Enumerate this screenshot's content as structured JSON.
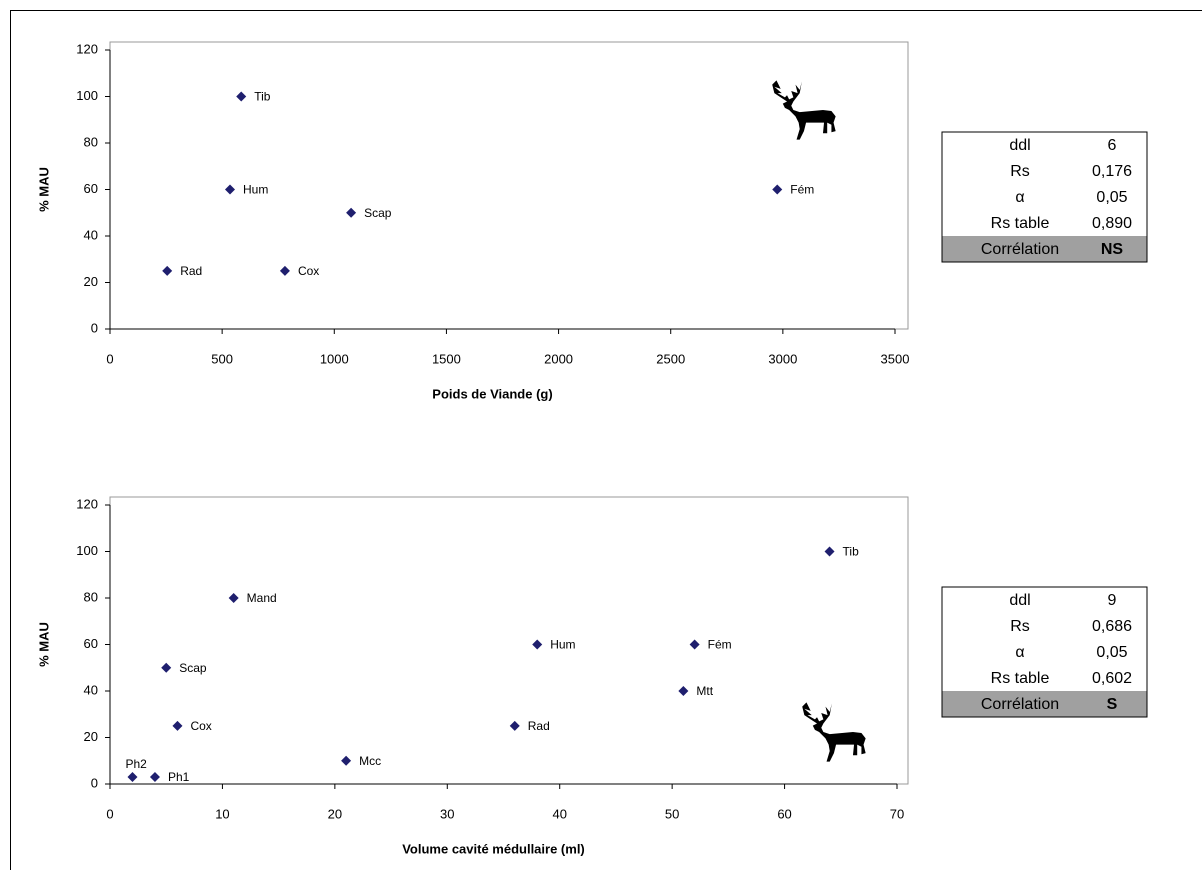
{
  "chart_data": [
    {
      "type": "scatter",
      "x_label": "Poids de Viande (g)",
      "y_label": "% MAU",
      "color": "#1f1f6e",
      "point_labels": [
        "Tib",
        "Hum",
        "Scap",
        "Rad",
        "Cox",
        "Fém"
      ],
      "x": [
        585,
        535,
        1075,
        255,
        780,
        2975
      ],
      "values": [
        100,
        60,
        50,
        25,
        25,
        60
      ],
      "xlim": [
        0,
        3500
      ],
      "xticks": [
        0,
        500,
        1000,
        1500,
        2000,
        2500,
        3000,
        3500
      ],
      "ylim": [
        0,
        120
      ],
      "yticks": [
        0,
        20,
        40,
        60,
        80,
        100,
        120
      ],
      "table": [
        [
          "ddl",
          "6"
        ],
        [
          "Rs",
          "0,176"
        ],
        [
          "α",
          "0,05"
        ],
        [
          "Rs table",
          "0,890"
        ],
        [
          "Corrélation",
          "NS"
        ]
      ]
    },
    {
      "type": "scatter",
      "x_label": "Volume cavité médullaire (ml)",
      "y_label": "% MAU",
      "color": "#1f1f6e",
      "point_labels": [
        "Ph2",
        "Ph1",
        "Cox",
        "Scap",
        "Mand",
        "Mcc",
        "Rad",
        "Hum",
        "Mtt",
        "Fém",
        "Tib"
      ],
      "x": [
        2,
        4,
        6,
        5,
        11,
        21,
        36,
        38,
        51,
        52,
        64
      ],
      "values": [
        3,
        3,
        25,
        50,
        80,
        10,
        25,
        60,
        40,
        60,
        100
      ],
      "xlim": [
        0,
        70
      ],
      "xticks": [
        0,
        10,
        20,
        30,
        40,
        50,
        60,
        70
      ],
      "ylim": [
        0,
        120
      ],
      "yticks": [
        0,
        20,
        40,
        60,
        80,
        100,
        120
      ],
      "table": [
        [
          "ddl",
          "9"
        ],
        [
          "Rs",
          "0,686"
        ],
        [
          "α",
          "0,05"
        ],
        [
          "Rs table",
          "0,602"
        ],
        [
          "Corrélation",
          "S"
        ]
      ]
    }
  ]
}
